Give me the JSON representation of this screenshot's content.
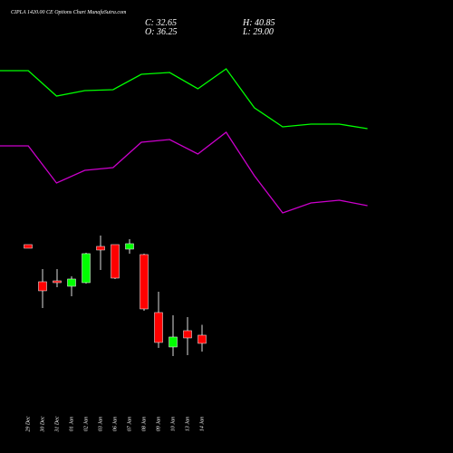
{
  "chart_data": [
    {
      "type": "candlestick",
      "title": "CIPLA 1420.00 CE Options Chart MunafaSutra.com",
      "annotations": [
        "C: 32.65",
        "O: 36.25",
        "H: 40.85",
        "L: 29.00"
      ],
      "categories": [
        "29 Dec",
        "30 Dec",
        "31 Dec",
        "01 Jan",
        "02 Jan",
        "03 Jan",
        "06 Jan",
        "07 Jan",
        "08 Jan",
        "09 Jan",
        "10 Jan",
        "13 Jan",
        "14 Jan"
      ],
      "open": [
        76.25,
        59.85,
        60.25,
        57.85,
        59.45,
        75.45,
        76.25,
        74.25,
        71.85,
        46.25,
        31.05,
        38.25,
        36.25
      ],
      "high": [
        76.25,
        65.45,
        65.45,
        62.25,
        72.65,
        80.25,
        76.25,
        78.65,
        72.25,
        55.45,
        45.05,
        44.25,
        40.85
      ],
      "low": [
        74.65,
        48.25,
        57.45,
        53.45,
        59.05,
        65.05,
        61.05,
        72.25,
        47.05,
        30.65,
        27.05,
        27.45,
        29.0
      ],
      "close": [
        74.65,
        55.85,
        59.45,
        61.05,
        72.25,
        73.85,
        61.45,
        76.65,
        47.85,
        33.05,
        35.45,
        35.05,
        32.65
      ],
      "up_color": "#00ff00",
      "down_color": "#ff0000",
      "ylim": [
        20,
        90
      ]
    },
    {
      "type": "line",
      "ylim": [
        0,
        500
      ],
      "series": [
        {
          "color": "#00ff00",
          "values": [
            422,
            422,
            394,
            400,
            401,
            418,
            420,
            402,
            424,
            381,
            360,
            363,
            363,
            358
          ]
        },
        {
          "color": "#cc00cc",
          "values": [
            339,
            339,
            298,
            312,
            315,
            343,
            346,
            330,
            354,
            306,
            265,
            276,
            279,
            273
          ]
        }
      ]
    }
  ]
}
